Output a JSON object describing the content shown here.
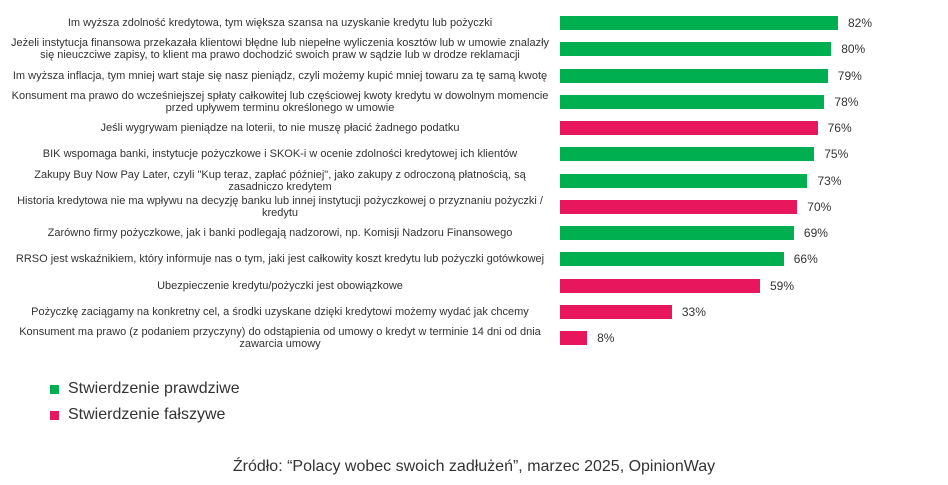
{
  "chart_data": {
    "type": "bar",
    "orientation": "horizontal",
    "categories": [
      "Im wyższa zdolność kredytowa, tym większa szansa na uzyskanie kredytu lub pożyczki",
      "Jeżeli instytucja finansowa przekazała klientowi błędne lub niepełne wyliczenia kosztów lub w umowie znalazły się nieuczciwe zapisy, to klient ma prawo dochodzić swoich praw w sądzie lub w drodze reklamacji",
      "Im wyższa inflacja, tym mniej wart staje się nasz pieniądz, czyli możemy kupić mniej towaru za tę samą kwotę",
      "Konsument ma prawo do wcześniejszej spłaty całkowitej lub częściowej kwoty kredytu w dowolnym momencie przed upływem terminu określonego w umowie",
      "Jeśli wygrywam pieniądze na loterii, to nie muszę płacić żadnego podatku",
      "BIK wspomaga banki, instytucje pożyczkowe i SKOK-i w ocenie zdolności kredytowej ich klientów",
      "Zakupy Buy Now Pay Later, czyli \"Kup teraz, zapłać później\", jako zakupy z odroczoną płatnością, są zasadniczo kredytem",
      "Historia kredytowa nie ma wpływu na decyzję banku lub innej instytucji pożyczkowej o przyznaniu pożyczki / kredytu",
      "Zarówno firmy pożyczkowe, jak i banki podlegają nadzorowi, np. Komisji Nadzoru Finansowego",
      "RRSO jest wskaźnikiem, który informuje nas o tym, jaki jest całkowity koszt kredytu lub pożyczki gotówkowej",
      "Ubezpieczenie kredytu/pożyczki jest obowiązkowe",
      "Pożyczkę zaciągamy na konkretny cel, a środki uzyskane dzięki kredytowi możemy wydać jak chcemy",
      "Konsument ma prawo (z podaniem przyczyny) do odstąpienia od umowy o kredyt w terminie 14 dni od dnia zawarcia umowy"
    ],
    "values": [
      82,
      80,
      79,
      78,
      76,
      75,
      73,
      70,
      69,
      66,
      59,
      33,
      8
    ],
    "value_labels": [
      "82%",
      "80%",
      "79%",
      "78%",
      "76%",
      "75%",
      "73%",
      "70%",
      "69%",
      "66%",
      "59%",
      "33%",
      "8%"
    ],
    "truth": [
      "true",
      "true",
      "true",
      "true",
      "false",
      "true",
      "true",
      "false",
      "true",
      "true",
      "false",
      "false",
      "false"
    ],
    "unit": "%",
    "xlim": [
      0,
      100
    ],
    "grid": false,
    "colors": {
      "true": "#00b050",
      "false": "#e8175d"
    },
    "legend": [
      {
        "key": "true",
        "label": "Stwierdzenie prawdziwe"
      },
      {
        "key": "false",
        "label": "Stwierdzenie fałszywe"
      }
    ],
    "legend_position": "bottom-left"
  },
  "source": "Źródło: “Polacy wobec swoich zadłużeń”, marzec 2025, OpinionWay"
}
